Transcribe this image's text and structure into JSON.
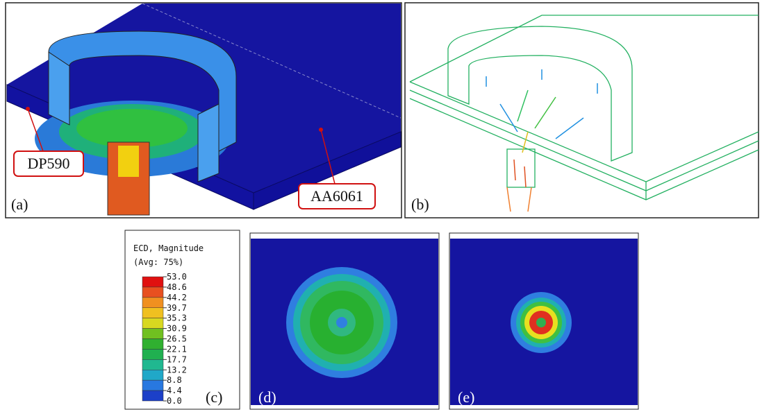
{
  "panels": {
    "a": {
      "label": "(a)",
      "materials": [
        "DP590",
        "AA6061"
      ]
    },
    "b": {
      "label": "(b)"
    },
    "c": {
      "label": "(c)",
      "legend_title": "ECD, Magnitude",
      "legend_subtitle": "(Avg: 75%)",
      "legend_values": [
        "53.0",
        "48.6",
        "44.2",
        "39.7",
        "35.3",
        "30.9",
        "26.5",
        "22.1",
        "17.7",
        "13.2",
        "8.8",
        "4.4",
        "0.0"
      ]
    },
    "d": {
      "label": "(d)"
    },
    "e": {
      "label": "(e)"
    }
  }
}
